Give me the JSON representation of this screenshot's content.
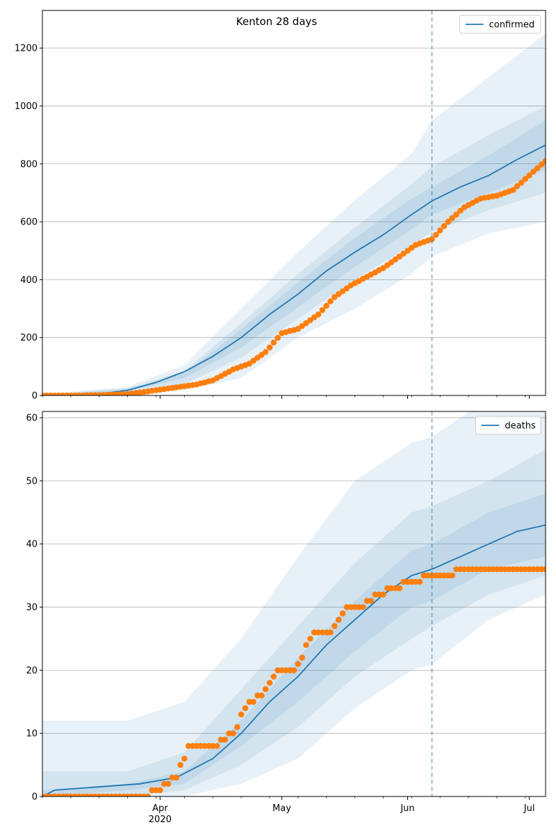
{
  "chart_data": [
    {
      "type": "line",
      "title": "Kenton 28 days",
      "legend": {
        "label": "confirmed",
        "placement": "top-right"
      },
      "grid": "y",
      "ylim": [
        0,
        1330
      ],
      "yticks": [
        0,
        200,
        400,
        600,
        800,
        1000,
        1200
      ],
      "xlim": [
        "2020-03-03",
        "2020-07-05"
      ],
      "xticks": [
        {
          "date": "2020-04-01",
          "label": "Apr",
          "sublabel": "2020"
        },
        {
          "date": "2020-05-01",
          "label": "May"
        },
        {
          "date": "2020-06-01",
          "label": "Jun"
        },
        {
          "date": "2020-07-01",
          "label": "Jul"
        }
      ],
      "forecast_start": "2020-06-07",
      "colors": {
        "line": "#1f77b4",
        "points": "#ff7f0e",
        "band": "#1f77b4"
      },
      "series": [
        {
          "name": "confirmed",
          "kind": "line",
          "x": [
            "2020-03-03",
            "2020-03-10",
            "2020-03-17",
            "2020-03-24",
            "2020-03-31",
            "2020-04-07",
            "2020-04-14",
            "2020-04-21",
            "2020-04-28",
            "2020-05-05",
            "2020-05-12",
            "2020-05-19",
            "2020-05-26",
            "2020-06-02",
            "2020-06-07",
            "2020-06-14",
            "2020-06-21",
            "2020-06-28",
            "2020-07-05"
          ],
          "y": [
            0,
            2,
            5,
            18,
            45,
            82,
            135,
            200,
            280,
            350,
            430,
            495,
            555,
            625,
            672,
            720,
            760,
            815,
            865
          ]
        },
        {
          "name": "observed confirmed",
          "kind": "scatter",
          "x": [
            "2020-03-03",
            "2020-03-10",
            "2020-03-17",
            "2020-03-24",
            "2020-03-28",
            "2020-04-01",
            "2020-04-05",
            "2020-04-10",
            "2020-04-14",
            "2020-04-19",
            "2020-04-23",
            "2020-04-27",
            "2020-05-01",
            "2020-05-05",
            "2020-05-10",
            "2020-05-14",
            "2020-05-18",
            "2020-05-22",
            "2020-05-26",
            "2020-05-30",
            "2020-06-03",
            "2020-06-07",
            "2020-06-11",
            "2020-06-15",
            "2020-06-19",
            "2020-06-23",
            "2020-06-27",
            "2020-07-01",
            "2020-07-05"
          ],
          "y": [
            0,
            0,
            1,
            5,
            12,
            20,
            28,
            38,
            52,
            90,
            110,
            150,
            215,
            230,
            280,
            340,
            380,
            410,
            440,
            480,
            520,
            540,
            600,
            650,
            680,
            690,
            710,
            760,
            810
          ]
        },
        {
          "name": "band 90%",
          "kind": "band",
          "x": [
            "2020-03-03",
            "2020-03-24",
            "2020-04-07",
            "2020-04-21",
            "2020-05-05",
            "2020-05-19",
            "2020-06-02",
            "2020-06-07",
            "2020-06-21",
            "2020-07-05"
          ],
          "lower": [
            0,
            2,
            20,
            60,
            200,
            300,
            420,
            480,
            560,
            600
          ],
          "upper": [
            5,
            30,
            105,
            300,
            495,
            675,
            835,
            950,
            1100,
            1250
          ]
        },
        {
          "name": "band 50%",
          "kind": "band",
          "x": [
            "2020-03-03",
            "2020-03-24",
            "2020-04-07",
            "2020-04-21",
            "2020-05-05",
            "2020-05-19",
            "2020-06-02",
            "2020-06-07",
            "2020-06-21",
            "2020-07-05"
          ],
          "lower": [
            0,
            10,
            40,
            130,
            265,
            400,
            520,
            565,
            640,
            700
          ],
          "upper": [
            2,
            25,
            85,
            250,
            420,
            580,
            730,
            790,
            900,
            1000
          ]
        },
        {
          "name": "band 25%",
          "kind": "band",
          "x": [
            "2020-03-03",
            "2020-03-24",
            "2020-04-07",
            "2020-04-21",
            "2020-05-05",
            "2020-05-19",
            "2020-06-02",
            "2020-06-07",
            "2020-06-21",
            "2020-07-05"
          ],
          "lower": [
            0,
            15,
            60,
            165,
            305,
            445,
            575,
            625,
            700,
            780
          ],
          "upper": [
            1,
            22,
            75,
            230,
            390,
            545,
            680,
            720,
            830,
            950
          ]
        }
      ]
    },
    {
      "type": "line",
      "title": "",
      "legend": {
        "label": "deaths",
        "placement": "top-right"
      },
      "grid": "y",
      "ylim": [
        0,
        61
      ],
      "yticks": [
        0,
        10,
        20,
        30,
        40,
        50,
        60
      ],
      "xlim": [
        "2020-03-03",
        "2020-07-05"
      ],
      "xticks": [
        {
          "date": "2020-04-01",
          "label": "Apr",
          "sublabel": "2020"
        },
        {
          "date": "2020-05-01",
          "label": "May"
        },
        {
          "date": "2020-06-01",
          "label": "Jun"
        },
        {
          "date": "2020-07-01",
          "label": "Jul"
        }
      ],
      "forecast_start": "2020-06-07",
      "colors": {
        "line": "#1f77b4",
        "points": "#ff7f0e",
        "band": "#1f77b4"
      },
      "series": [
        {
          "name": "deaths",
          "kind": "line",
          "x": [
            "2020-03-03",
            "2020-03-06",
            "2020-03-27",
            "2020-04-05",
            "2020-04-14",
            "2020-04-21",
            "2020-04-28",
            "2020-05-05",
            "2020-05-12",
            "2020-05-19",
            "2020-05-26",
            "2020-06-02",
            "2020-06-07",
            "2020-06-14",
            "2020-06-21",
            "2020-06-28",
            "2020-07-05"
          ],
          "y": [
            0,
            1,
            2,
            3,
            6,
            10,
            15,
            19,
            24,
            28,
            32,
            35,
            36,
            38,
            40,
            42,
            43
          ]
        },
        {
          "name": "observed deaths",
          "kind": "scatter",
          "x": [
            "2020-03-03",
            "2020-03-10",
            "2020-03-17",
            "2020-03-24",
            "2020-03-28",
            "2020-04-01",
            "2020-04-05",
            "2020-04-08",
            "2020-04-14",
            "2020-04-19",
            "2020-04-23",
            "2020-04-26",
            "2020-04-30",
            "2020-05-04",
            "2020-05-09",
            "2020-05-13",
            "2020-05-17",
            "2020-05-21",
            "2020-05-25",
            "2020-05-29",
            "2020-06-02",
            "2020-06-07",
            "2020-06-10",
            "2020-06-14",
            "2020-06-20",
            "2020-06-26",
            "2020-07-02",
            "2020-07-05"
          ],
          "y": [
            0,
            0,
            0,
            0,
            0,
            1,
            3,
            8,
            8,
            10,
            15,
            16,
            20,
            20,
            26,
            26,
            30,
            30,
            32,
            33,
            34,
            35,
            34,
            36,
            36,
            36,
            36,
            36
          ]
        },
        {
          "name": "band 90%",
          "kind": "band",
          "x": [
            "2020-03-03",
            "2020-03-24",
            "2020-04-07",
            "2020-04-21",
            "2020-05-05",
            "2020-05-19",
            "2020-06-02",
            "2020-06-07",
            "2020-06-21",
            "2020-07-05"
          ],
          "lower": [
            0,
            0,
            0,
            2,
            6,
            14,
            20,
            21,
            28,
            32
          ],
          "upper": [
            12,
            12,
            15,
            25,
            38,
            50,
            56,
            57,
            63,
            65
          ]
        },
        {
          "name": "band 50%",
          "kind": "band",
          "x": [
            "2020-03-03",
            "2020-03-24",
            "2020-04-07",
            "2020-04-21",
            "2020-05-05",
            "2020-05-19",
            "2020-06-02",
            "2020-06-07",
            "2020-06-21",
            "2020-07-05"
          ],
          "lower": [
            0,
            0,
            1,
            5,
            11,
            19,
            25,
            27,
            32,
            35
          ],
          "upper": [
            4,
            4,
            7,
            17,
            27,
            37,
            45,
            46,
            50,
            55
          ]
        },
        {
          "name": "band 25%",
          "kind": "band",
          "x": [
            "2020-03-03",
            "2020-03-24",
            "2020-04-07",
            "2020-04-21",
            "2020-05-05",
            "2020-05-19",
            "2020-06-02",
            "2020-06-07",
            "2020-06-21",
            "2020-07-05"
          ],
          "lower": [
            0,
            1,
            2,
            8,
            15,
            23,
            30,
            31,
            36,
            38
          ],
          "upper": [
            1,
            2,
            4,
            12,
            22,
            31,
            39,
            40,
            45,
            48
          ]
        }
      ]
    }
  ]
}
